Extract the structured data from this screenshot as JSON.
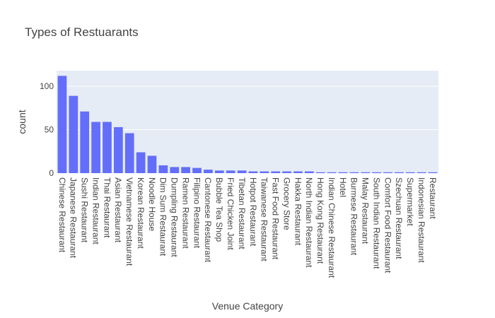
{
  "chart_data": {
    "type": "bar",
    "title": "Types of Restuarants",
    "xlabel": "Venue Category",
    "ylabel": "count",
    "ylim": [
      0,
      118
    ],
    "yticks": [
      0,
      50,
      100
    ],
    "grid": true,
    "colors": {
      "bar": "#636efa",
      "plot_bg": "#e5ecf6",
      "grid": "#ffffff",
      "text": "#444444"
    },
    "categories": [
      "Chinese Restaurant",
      "Japanese Restaurant",
      "Sushi Restaurant",
      "Indian Restaurant",
      "Thai Restaurant",
      "Asian Restaurant",
      "Vietnamese Restaurant",
      "Korean Restaurant",
      "Noodle House",
      "Dim Sum Restaurant",
      "Dumpling Restaurant",
      "Ramen Restaurant",
      "Filipino Restaurant",
      "Cantonese Restaurant",
      "Bubble Tea Shop",
      "Fried Chicken Joint",
      "Tibetan Restaurant",
      "Hotpot Restaurant",
      "Taiwanese Restaurant",
      "Fast Food Restaurant",
      "Grocery Store",
      "Hakka Restaurant",
      "North Indian Restaurant",
      "Hong Kong Restaurant",
      "Indian Chinese Restaurant",
      "Hotel",
      "Burmese Restaurant",
      "Malay Restaurant",
      "South Indian Restaurant",
      "Comfort Food Restaurant",
      "Szechuan Restaurant",
      "Supermarket",
      "Indonesian Restaurant",
      "Restaurant"
    ],
    "values": [
      112,
      89,
      71,
      59,
      59,
      53,
      46,
      24,
      20,
      9,
      7,
      7,
      6,
      4,
      3,
      3,
      3,
      2,
      2,
      2,
      2,
      2,
      2,
      1,
      1,
      1,
      1,
      1,
      1,
      1,
      1,
      1,
      1,
      1
    ]
  }
}
